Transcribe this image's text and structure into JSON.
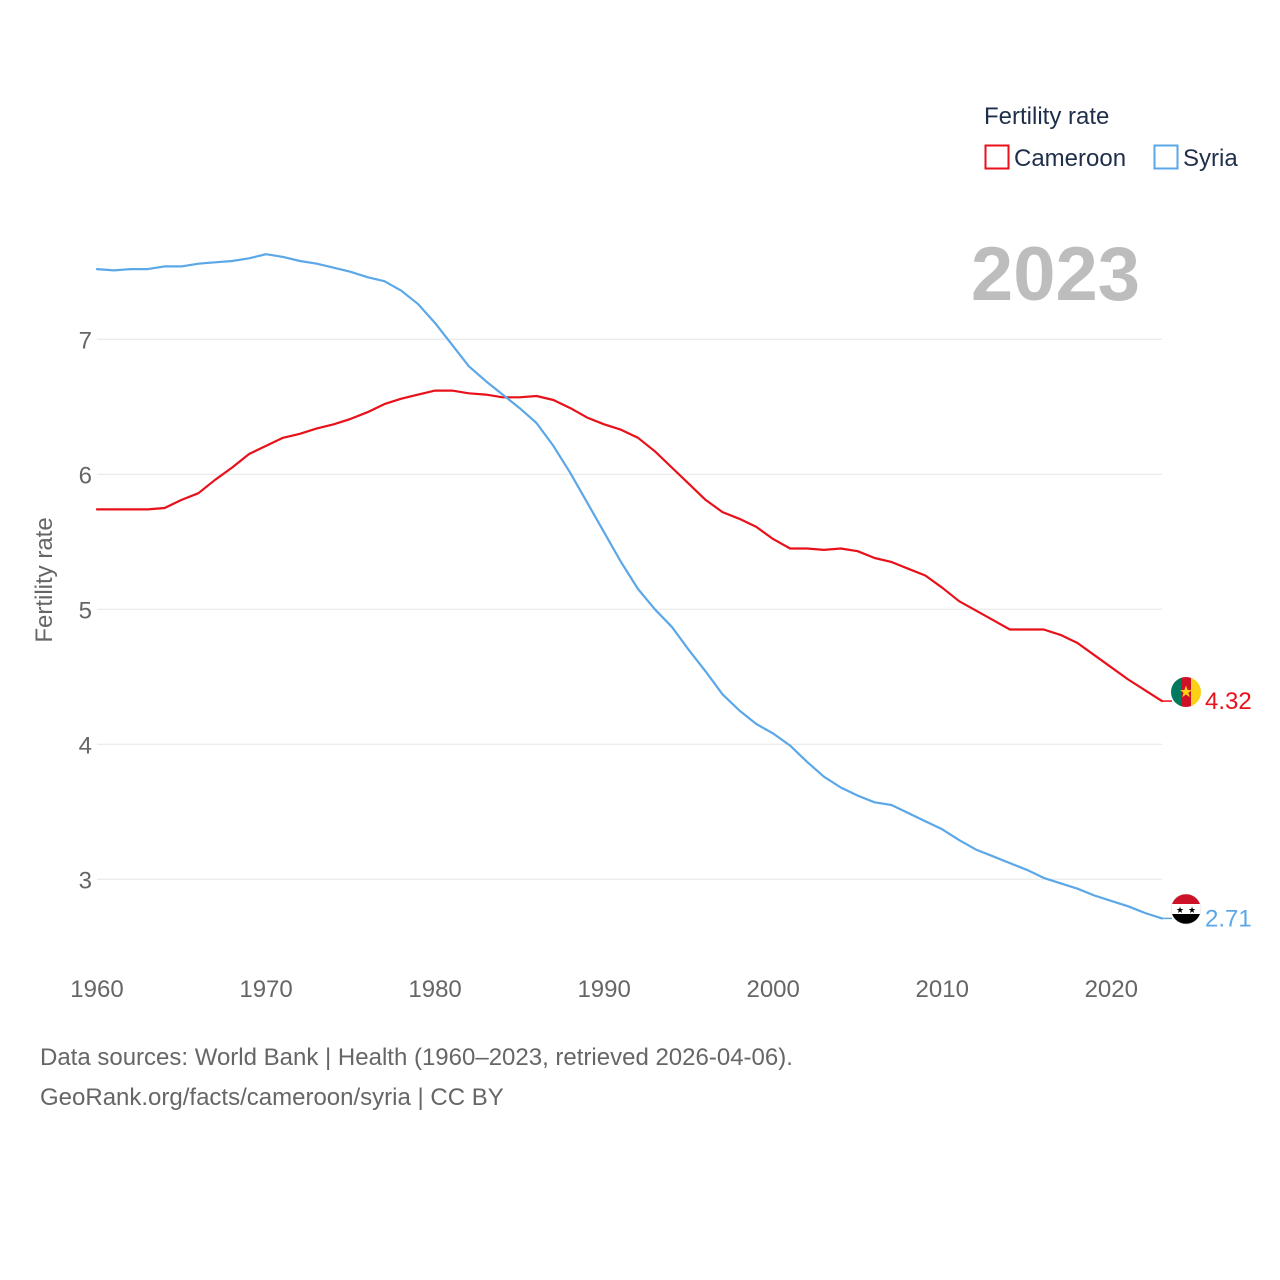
{
  "chart_data": {
    "type": "line",
    "title": "",
    "year_label": "2023",
    "xlabel": "",
    "ylabel": "Fertility rate",
    "xlim": [
      1960,
      2023
    ],
    "ylim": [
      2.55,
      7.78
    ],
    "x_ticks": [
      1960,
      1970,
      1980,
      1990,
      2000,
      2010,
      2020
    ],
    "y_ticks": [
      3,
      4,
      5,
      6,
      7
    ],
    "grid": true,
    "legend": {
      "title": "Fertility rate",
      "placement": "top-right",
      "entries": [
        "Cameroon",
        "Syria"
      ]
    },
    "x": [
      1960,
      1961,
      1962,
      1963,
      1964,
      1965,
      1966,
      1967,
      1968,
      1969,
      1970,
      1971,
      1972,
      1973,
      1974,
      1975,
      1976,
      1977,
      1978,
      1979,
      1980,
      1981,
      1982,
      1983,
      1984,
      1985,
      1986,
      1987,
      1988,
      1989,
      1990,
      1991,
      1992,
      1993,
      1994,
      1995,
      1996,
      1997,
      1998,
      1999,
      2000,
      2001,
      2002,
      2003,
      2004,
      2005,
      2006,
      2007,
      2008,
      2009,
      2010,
      2011,
      2012,
      2013,
      2014,
      2015,
      2016,
      2017,
      2018,
      2019,
      2020,
      2021,
      2022,
      2023
    ],
    "series": [
      {
        "name": "Cameroon",
        "color": "#e8111a",
        "end_label": "4.32",
        "values": [
          5.74,
          5.74,
          5.74,
          5.74,
          5.75,
          5.81,
          5.86,
          5.96,
          6.05,
          6.15,
          6.21,
          6.27,
          6.3,
          6.34,
          6.37,
          6.41,
          6.46,
          6.52,
          6.56,
          6.59,
          6.62,
          6.62,
          6.6,
          6.59,
          6.57,
          6.57,
          6.58,
          6.55,
          6.49,
          6.42,
          6.37,
          6.33,
          6.27,
          6.17,
          6.05,
          5.93,
          5.81,
          5.72,
          5.67,
          5.61,
          5.52,
          5.45,
          5.45,
          5.44,
          5.45,
          5.43,
          5.38,
          5.35,
          5.3,
          5.25,
          5.16,
          5.06,
          4.99,
          4.92,
          4.85,
          4.85,
          4.85,
          4.81,
          4.75,
          4.66,
          4.57,
          4.48,
          4.4,
          4.32
        ]
      },
      {
        "name": "Syria",
        "color": "#5ba7e8",
        "end_label": "2.71",
        "values": [
          7.52,
          7.51,
          7.52,
          7.52,
          7.54,
          7.54,
          7.56,
          7.57,
          7.58,
          7.6,
          7.63,
          7.61,
          7.58,
          7.56,
          7.53,
          7.5,
          7.46,
          7.43,
          7.36,
          7.26,
          7.12,
          6.96,
          6.8,
          6.69,
          6.59,
          6.49,
          6.38,
          6.21,
          6.01,
          5.79,
          5.57,
          5.35,
          5.15,
          5.0,
          4.87,
          4.7,
          4.54,
          4.37,
          4.25,
          4.15,
          4.08,
          3.99,
          3.87,
          3.76,
          3.68,
          3.62,
          3.57,
          3.55,
          3.49,
          3.43,
          3.37,
          3.29,
          3.22,
          3.17,
          3.12,
          3.07,
          3.01,
          2.97,
          2.93,
          2.88,
          2.84,
          2.8,
          2.75,
          2.71
        ]
      }
    ]
  },
  "footer": {
    "source_line_1": "Data sources: World Bank | Health (1960–2023, retrieved 2026-04-06).",
    "source_line_2": "GeoRank.org/facts/cameroon/syria | CC BY"
  }
}
